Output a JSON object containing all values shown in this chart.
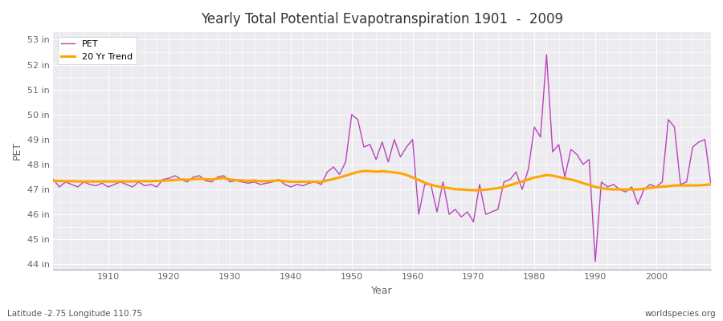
{
  "title": "Yearly Total Potential Evapotranspiration 1901  -  2009",
  "ylabel": "PET",
  "xlabel": "Year",
  "footnote_left": "Latitude -2.75 Longitude 110.75",
  "footnote_right": "worldspecies.org",
  "pet_color": "#bb44bb",
  "trend_color": "#FFA500",
  "background_color": "#ebebf0",
  "ylim": [
    43.8,
    53.3
  ],
  "yticks": [
    44,
    45,
    46,
    47,
    48,
    49,
    50,
    51,
    52,
    53
  ],
  "ytick_labels": [
    "44 in",
    "45 in",
    "46 in",
    "47 in",
    "48 in",
    "49 in",
    "50 in",
    "51 in",
    "52 in",
    "53 in"
  ],
  "xticks": [
    1910,
    1920,
    1930,
    1940,
    1950,
    1960,
    1970,
    1980,
    1990,
    2000
  ],
  "years": [
    1901,
    1902,
    1903,
    1904,
    1905,
    1906,
    1907,
    1908,
    1909,
    1910,
    1911,
    1912,
    1913,
    1914,
    1915,
    1916,
    1917,
    1918,
    1919,
    1920,
    1921,
    1922,
    1923,
    1924,
    1925,
    1926,
    1927,
    1928,
    1929,
    1930,
    1931,
    1932,
    1933,
    1934,
    1935,
    1936,
    1937,
    1938,
    1939,
    1940,
    1941,
    1942,
    1943,
    1944,
    1945,
    1946,
    1947,
    1948,
    1949,
    1950,
    1951,
    1952,
    1953,
    1954,
    1955,
    1956,
    1957,
    1958,
    1959,
    1960,
    1961,
    1962,
    1963,
    1964,
    1965,
    1966,
    1967,
    1968,
    1969,
    1970,
    1971,
    1972,
    1973,
    1974,
    1975,
    1976,
    1977,
    1978,
    1979,
    1980,
    1981,
    1982,
    1983,
    1984,
    1985,
    1986,
    1987,
    1988,
    1989,
    1990,
    1991,
    1992,
    1993,
    1994,
    1995,
    1996,
    1997,
    1998,
    1999,
    2000,
    2001,
    2002,
    2003,
    2004,
    2005,
    2006,
    2007,
    2008,
    2009
  ],
  "pet_values": [
    47.4,
    47.1,
    47.3,
    47.2,
    47.1,
    47.3,
    47.2,
    47.15,
    47.25,
    47.1,
    47.2,
    47.3,
    47.2,
    47.1,
    47.3,
    47.15,
    47.2,
    47.1,
    47.4,
    47.45,
    47.55,
    47.4,
    47.3,
    47.5,
    47.55,
    47.35,
    47.3,
    47.5,
    47.55,
    47.3,
    47.35,
    47.3,
    47.25,
    47.3,
    47.2,
    47.25,
    47.3,
    47.4,
    47.2,
    47.1,
    47.2,
    47.15,
    47.25,
    47.3,
    47.2,
    47.7,
    47.9,
    47.6,
    48.1,
    50.0,
    49.8,
    48.7,
    48.8,
    48.2,
    48.9,
    48.1,
    49.0,
    48.3,
    48.7,
    49.0,
    46.0,
    47.2,
    47.2,
    46.1,
    47.3,
    46.0,
    46.2,
    45.9,
    46.1,
    45.7,
    47.2,
    46.0,
    46.1,
    46.2,
    47.3,
    47.4,
    47.7,
    47.0,
    47.8,
    49.5,
    49.1,
    52.4,
    48.5,
    48.8,
    47.5,
    48.6,
    48.4,
    48.0,
    48.2,
    44.1,
    47.3,
    47.1,
    47.2,
    47.0,
    46.9,
    47.1,
    46.4,
    47.0,
    47.2,
    47.1,
    47.3,
    49.8,
    49.5,
    47.2,
    47.3,
    48.7,
    48.9,
    49.0,
    47.2
  ],
  "trend_values": [
    47.35,
    47.34,
    47.33,
    47.33,
    47.32,
    47.32,
    47.32,
    47.32,
    47.32,
    47.32,
    47.32,
    47.32,
    47.32,
    47.32,
    47.33,
    47.33,
    47.33,
    47.34,
    47.35,
    47.36,
    47.38,
    47.4,
    47.39,
    47.41,
    47.43,
    47.41,
    47.4,
    47.43,
    47.46,
    47.4,
    47.37,
    47.36,
    47.34,
    47.36,
    47.33,
    47.33,
    47.34,
    47.36,
    47.33,
    47.31,
    47.31,
    47.31,
    47.31,
    47.31,
    47.3,
    47.36,
    47.42,
    47.48,
    47.55,
    47.63,
    47.7,
    47.74,
    47.73,
    47.71,
    47.73,
    47.71,
    47.68,
    47.65,
    47.58,
    47.48,
    47.38,
    47.27,
    47.19,
    47.13,
    47.08,
    47.05,
    47.01,
    47.0,
    46.98,
    46.97,
    46.97,
    46.99,
    47.02,
    47.05,
    47.1,
    47.17,
    47.25,
    47.32,
    47.4,
    47.48,
    47.52,
    47.58,
    47.55,
    47.5,
    47.44,
    47.4,
    47.33,
    47.25,
    47.18,
    47.1,
    47.05,
    47.02,
    47.0,
    47.0,
    47.0,
    47.0,
    47.0,
    47.03,
    47.06,
    47.09,
    47.11,
    47.13,
    47.16,
    47.16,
    47.16,
    47.16,
    47.16,
    47.18,
    47.21
  ],
  "legend_pet_label": "PET",
  "legend_trend_label": "20 Yr Trend"
}
